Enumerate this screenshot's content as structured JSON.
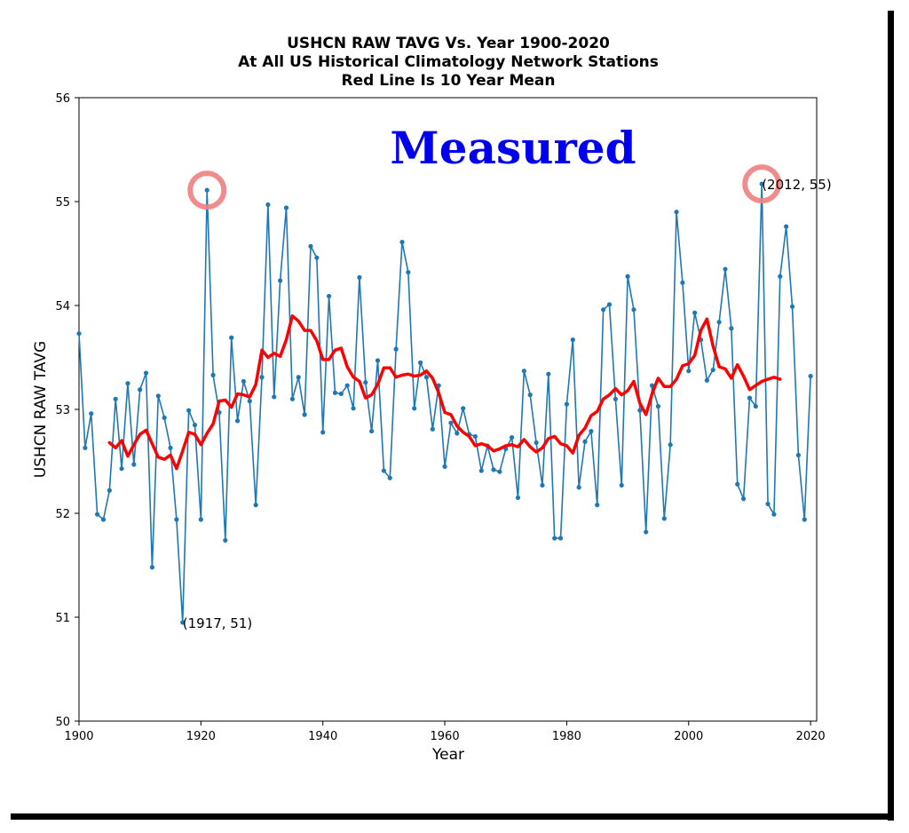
{
  "chart_data": {
    "type": "line",
    "title_lines": [
      "USHCN RAW TAVG Vs. Year 1900-2020",
      "At All US Historical Climatology Network Stations",
      "Red Line Is 10 Year Mean"
    ],
    "xlabel": "Year",
    "ylabel": "USHCN RAW TAVG",
    "xlim": [
      1900,
      2021
    ],
    "ylim": [
      50,
      56
    ],
    "xticks": [
      1900,
      1920,
      1940,
      1960,
      1980,
      2000,
      2020
    ],
    "yticks": [
      50,
      51,
      52,
      53,
      54,
      55,
      56
    ],
    "grid": false,
    "watermark": "Measured",
    "colors": {
      "raw": "#1f77b4",
      "mean": "#ff0000",
      "highlight": "#f08080",
      "watermark": "#0000ee"
    },
    "series": [
      {
        "role": "raw",
        "x": [
          1900,
          1901,
          1902,
          1903,
          1904,
          1905,
          1906,
          1907,
          1908,
          1909,
          1910,
          1911,
          1912,
          1913,
          1914,
          1915,
          1916,
          1917,
          1918,
          1919,
          1920,
          1921,
          1922,
          1923,
          1924,
          1925,
          1926,
          1927,
          1928,
          1929,
          1930,
          1931,
          1932,
          1933,
          1934,
          1935,
          1936,
          1937,
          1938,
          1939,
          1940,
          1941,
          1942,
          1943,
          1944,
          1945,
          1946,
          1947,
          1948,
          1949,
          1950,
          1951,
          1952,
          1953,
          1954,
          1955,
          1956,
          1957,
          1958,
          1959,
          1960,
          1961,
          1962,
          1963,
          1964,
          1965,
          1966,
          1967,
          1968,
          1969,
          1970,
          1971,
          1972,
          1973,
          1974,
          1975,
          1976,
          1977,
          1978,
          1979,
          1980,
          1981,
          1982,
          1983,
          1984,
          1985,
          1986,
          1987,
          1988,
          1989,
          1990,
          1991,
          1992,
          1993,
          1994,
          1995,
          1996,
          1997,
          1998,
          1999,
          2000,
          2001,
          2002,
          2003,
          2004,
          2005,
          2006,
          2007,
          2008,
          2009,
          2010,
          2011,
          2012,
          2013,
          2014,
          2015,
          2016,
          2017,
          2018,
          2019,
          2020
        ],
        "y": [
          53.73,
          52.63,
          52.96,
          51.99,
          51.94,
          52.22,
          53.1,
          52.43,
          53.25,
          52.47,
          53.19,
          53.35,
          51.48,
          53.13,
          52.92,
          52.63,
          51.94,
          50.95,
          52.99,
          52.85,
          51.94,
          55.11,
          53.33,
          52.97,
          51.74,
          53.69,
          52.89,
          53.27,
          53.08,
          52.08,
          53.31,
          54.97,
          53.12,
          54.24,
          54.94,
          53.1,
          53.31,
          52.95,
          54.57,
          54.46,
          52.78,
          54.09,
          53.16,
          53.15,
          53.23,
          53.01,
          54.27,
          53.26,
          52.79,
          53.47,
          52.41,
          52.34,
          53.58,
          54.61,
          54.32,
          53.01,
          53.45,
          53.31,
          52.81,
          53.23,
          52.45,
          52.87,
          52.77,
          53.01,
          52.76,
          52.74,
          52.41,
          52.65,
          52.42,
          52.4,
          52.62,
          52.73,
          52.15,
          53.37,
          53.14,
          52.68,
          52.27,
          53.34,
          51.76,
          51.76,
          53.05,
          53.67,
          52.25,
          52.69,
          52.79,
          52.08,
          53.96,
          54.01,
          53.1,
          52.27,
          54.28,
          53.96,
          52.99,
          51.82,
          53.23,
          53.03,
          51.95,
          52.66,
          54.9,
          54.22,
          53.37,
          53.93,
          53.67,
          53.28,
          53.38,
          53.84,
          54.35,
          53.78,
          52.28,
          52.14,
          53.11,
          53.03,
          55.17,
          52.09,
          51.99,
          54.28,
          54.76,
          53.99,
          52.56,
          51.94,
          53.32
        ]
      },
      {
        "role": "mean",
        "x": [
          1905,
          1906,
          1907,
          1908,
          1909,
          1910,
          1911,
          1912,
          1913,
          1914,
          1915,
          1916,
          1917,
          1918,
          1919,
          1920,
          1921,
          1922,
          1923,
          1924,
          1925,
          1926,
          1927,
          1928,
          1929,
          1930,
          1931,
          1932,
          1933,
          1934,
          1935,
          1936,
          1937,
          1938,
          1939,
          1940,
          1941,
          1942,
          1943,
          1944,
          1945,
          1946,
          1947,
          1948,
          1949,
          1950,
          1951,
          1952,
          1953,
          1954,
          1955,
          1956,
          1957,
          1958,
          1959,
          1960,
          1961,
          1962,
          1963,
          1964,
          1965,
          1966,
          1967,
          1968,
          1969,
          1970,
          1971,
          1972,
          1973,
          1974,
          1975,
          1976,
          1977,
          1978,
          1979,
          1980,
          1981,
          1982,
          1983,
          1984,
          1985,
          1986,
          1987,
          1988,
          1989,
          1990,
          1991,
          1992,
          1993,
          1994,
          1995,
          1996,
          1997,
          1998,
          1999,
          2000,
          2001,
          2002,
          2003,
          2004,
          2005,
          2006,
          2007,
          2008,
          2009,
          2010,
          2011,
          2012,
          2013,
          2014,
          2015
        ],
        "y": [
          52.68,
          52.63,
          52.7,
          52.55,
          52.66,
          52.76,
          52.8,
          52.67,
          52.54,
          52.52,
          52.56,
          52.43,
          52.6,
          52.78,
          52.76,
          52.66,
          52.77,
          52.86,
          53.08,
          53.09,
          53.02,
          53.15,
          53.14,
          53.12,
          53.24,
          53.57,
          53.5,
          53.54,
          53.51,
          53.67,
          53.9,
          53.85,
          53.76,
          53.76,
          53.66,
          53.48,
          53.48,
          53.57,
          53.59,
          53.41,
          53.31,
          53.27,
          53.11,
          53.14,
          53.24,
          53.4,
          53.4,
          53.31,
          53.33,
          53.34,
          53.32,
          53.33,
          53.37,
          53.3,
          53.16,
          52.97,
          52.95,
          52.84,
          52.78,
          52.74,
          52.65,
          52.67,
          52.65,
          52.6,
          52.62,
          52.65,
          52.66,
          52.64,
          52.71,
          52.64,
          52.59,
          52.63,
          52.72,
          52.74,
          52.67,
          52.65,
          52.58,
          52.75,
          52.82,
          52.94,
          52.98,
          53.1,
          53.14,
          53.2,
          53.14,
          53.18,
          53.27,
          53.06,
          52.95,
          53.15,
          53.3,
          53.22,
          53.22,
          53.29,
          53.42,
          53.44,
          53.52,
          53.76,
          53.87,
          53.61,
          53.41,
          53.39,
          53.3,
          53.43,
          53.32,
          53.19,
          53.23,
          53.27,
          53.29,
          53.31,
          53.29
        ]
      }
    ],
    "annotations": [
      {
        "text": "(1917, 51)",
        "x": 1917,
        "y": 50.95
      },
      {
        "text": "(2012, 55)",
        "x": 2012,
        "y": 55.17
      }
    ],
    "highlights": [
      {
        "x": 1921,
        "y": 55.11
      },
      {
        "x": 2012,
        "y": 55.17
      }
    ]
  }
}
